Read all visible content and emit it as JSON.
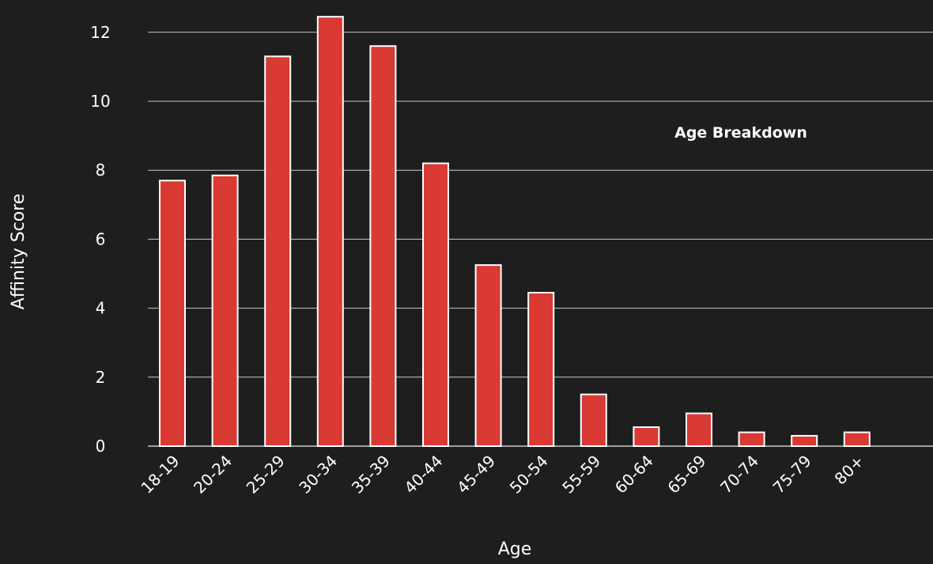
{
  "chart_data": {
    "type": "bar",
    "title": "Age Breakdown",
    "xlabel": "Age",
    "ylabel": "Affinity Score",
    "categories": [
      "18-19",
      "20-24",
      "25-29",
      "30-34",
      "35-39",
      "40-44",
      "45-49",
      "50-54",
      "55-59",
      "60-64",
      "65-69",
      "70-74",
      "75-79",
      "80+"
    ],
    "values": [
      7.7,
      7.85,
      11.3,
      12.45,
      11.6,
      8.2,
      5.25,
      4.45,
      1.5,
      0.55,
      0.95,
      0.4,
      0.3,
      0.4
    ],
    "ylim": [
      0,
      12.5
    ],
    "yticks": [
      0,
      2,
      4,
      6,
      8,
      10,
      12
    ],
    "grid": true,
    "colors": {
      "background": "#1e1e1e",
      "bar": "#d93a34",
      "bar_outline": "#ffffff",
      "grid": "#c8c8c8",
      "text": "#ffffff"
    }
  }
}
